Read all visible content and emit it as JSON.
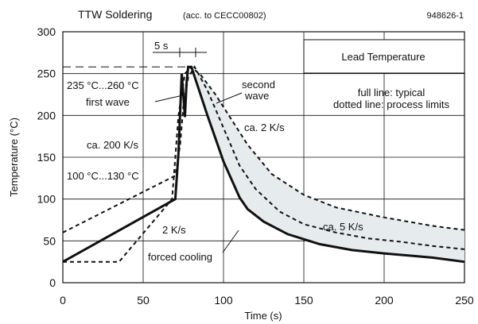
{
  "figure_id": "948626-1",
  "chart_data": {
    "type": "line",
    "title": "TTW Soldering",
    "subtitle": "(acc. to CECC00802)",
    "inset_label": "Lead Temperature",
    "legend_note_1": "full line: typical",
    "legend_note_2": "dotted line: process limits",
    "xlabel": "Time (s)",
    "ylabel": "Temperature (°C)",
    "xlim": [
      0,
      250
    ],
    "ylim": [
      0,
      300
    ],
    "x_ticks": [
      0,
      50,
      100,
      150,
      200,
      250
    ],
    "y_ticks": [
      0,
      50,
      100,
      150,
      200,
      250,
      300
    ],
    "grid": true,
    "series": [
      {
        "style": "solid",
        "x": [
          0,
          70,
          72,
          74,
          75,
          76,
          77,
          78,
          80,
          90,
          100,
          110,
          115,
          125,
          140,
          160,
          180,
          200,
          230,
          250
        ],
        "y": [
          25,
          100,
          155,
          250,
          225,
          198,
          238,
          258,
          258,
          200,
          145,
          102,
          88,
          73,
          58,
          46,
          39,
          35,
          30,
          25
        ]
      },
      {
        "style": "dashed",
        "x": [
          0,
          70,
          73,
          75,
          78,
          82,
          90,
          100,
          110,
          120,
          135,
          150,
          170,
          190,
          210,
          230,
          250
        ],
        "y": [
          60,
          128,
          165,
          210,
          245,
          258,
          230,
          185,
          140,
          112,
          85,
          70,
          60,
          53,
          49,
          44,
          40
        ]
      },
      {
        "style": "dashed",
        "x": [
          0,
          35,
          68,
          72,
          76,
          80,
          86,
          95,
          105,
          115,
          130,
          150,
          170,
          200,
          230,
          250
        ],
        "y": [
          25,
          25,
          100,
          200,
          250,
          258,
          248,
          225,
          195,
          165,
          130,
          105,
          90,
          78,
          68,
          63
        ]
      }
    ],
    "reference_line": {
      "y": 258,
      "x_from": 0,
      "x_to": 80
    },
    "shaded_band_between": [
      "solid",
      "dashed_2"
    ],
    "annotations": {
      "five_s": "5 s",
      "temp_range": "235 °C...260 °C",
      "first_wave": "first wave",
      "second_wave_1": "second",
      "second_wave_2": "wave",
      "rate_200": "ca. 200 K/s",
      "rate_2_top": "ca. 2 K/s",
      "preheat": "100 °C...130 °C",
      "rate_2_bottom": "2 K/s",
      "rate_5": "ca. 5 K/s",
      "forced_cooling": "forced cooling"
    }
  }
}
